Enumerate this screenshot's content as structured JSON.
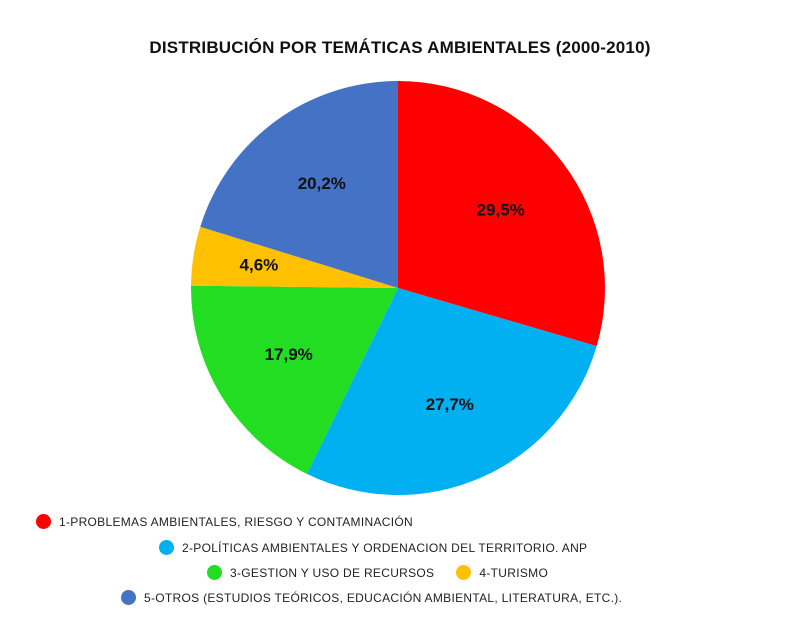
{
  "chart_data": {
    "type": "pie",
    "title": "DISTRIBUCIÓN POR TEMÁTICAS AMBIENTALES (2000-2010)",
    "slices": [
      {
        "label": "1-PROBLEMAS AMBIENTALES, RIESGO Y CONTAMINACIÓN",
        "value": 29.5,
        "display": "29,5%",
        "color": "#ff0000"
      },
      {
        "label": "2-POLÍTICAS AMBIENTALES Y ORDENACION DEL TERRITORIO. ANP",
        "value": 27.7,
        "display": "27,7%",
        "color": "#00b0f0"
      },
      {
        "label": "3-GESTION Y USO DE RECURSOS",
        "value": 17.9,
        "display": "17,9%",
        "color": "#22dd22"
      },
      {
        "label": "4-TURISMO",
        "value": 4.6,
        "display": "4,6%",
        "color": "#ffc000"
      },
      {
        "label": "5-OTROS (ESTUDIOS TEÓRICOS, EDUCACIÓN AMBIENTAL, LITERATURA, ETC.).",
        "value": 20.2,
        "display": "20,2%",
        "color": "#4472c4"
      }
    ],
    "start_angle_deg": 0,
    "direction": "clockwise",
    "legend": "bottom"
  }
}
